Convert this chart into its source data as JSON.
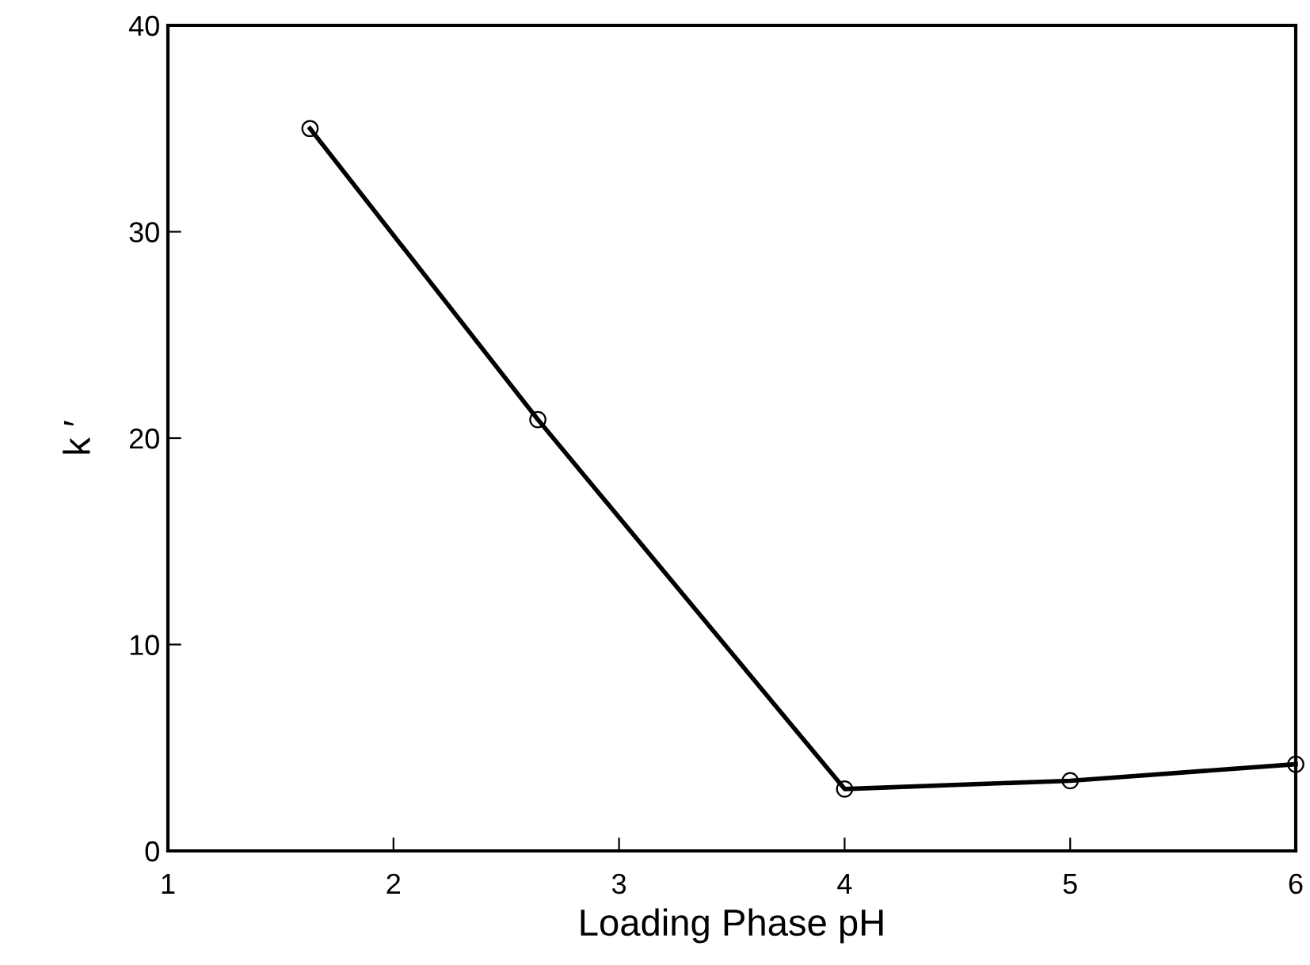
{
  "chart_data": {
    "type": "line",
    "xlabel": "Loading Phase pH",
    "ylabel": "k ′",
    "x": [
      1.63,
      2.64,
      4,
      5,
      6
    ],
    "series": [
      {
        "color": "#000000",
        "values": [
          35.0,
          20.9,
          3.0,
          3.4,
          4.2
        ]
      }
    ],
    "xlim": [
      1,
      6
    ],
    "ylim": [
      0,
      40
    ],
    "xticks": [
      1,
      2,
      3,
      4,
      5,
      6
    ],
    "yticks": [
      0,
      10,
      20,
      30,
      40
    ],
    "marker": "circle",
    "line_style": "solid",
    "grid": false,
    "legend": false
  }
}
